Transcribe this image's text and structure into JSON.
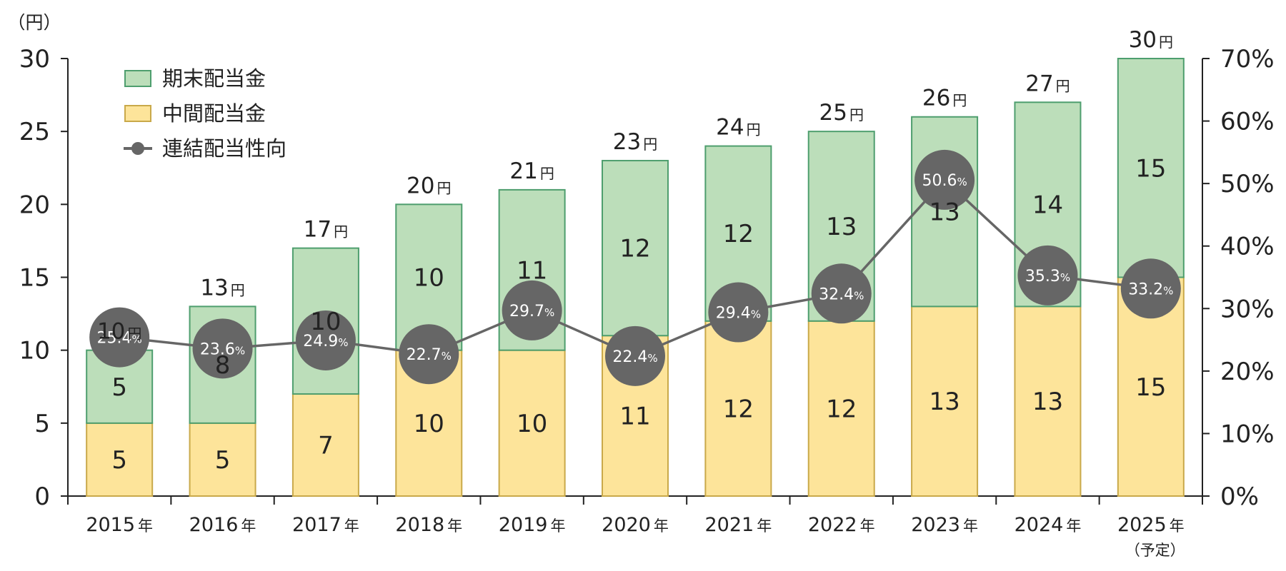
{
  "chart_data": {
    "type": "bar",
    "stacked": true,
    "categories": [
      "2015",
      "2016",
      "2017",
      "2018",
      "2019",
      "2020",
      "2021",
      "2022",
      "2023",
      "2024",
      "2025"
    ],
    "category_suffix": "年",
    "category_notes": [
      "",
      "",
      "",
      "",
      "",
      "",
      "",
      "",
      "",
      "",
      "（予定）"
    ],
    "series": [
      {
        "name": "中間配当金",
        "values": [
          5,
          5,
          7,
          10,
          10,
          11,
          12,
          12,
          13,
          13,
          15
        ],
        "color": "#fde49a",
        "stroke": "#c9a94a"
      },
      {
        "name": "期末配当金",
        "values": [
          5,
          8,
          10,
          10,
          11,
          12,
          12,
          13,
          13,
          14,
          15
        ],
        "color": "#bcdeba",
        "stroke": "#4e9e6e"
      }
    ],
    "totals": [
      10,
      13,
      17,
      20,
      21,
      23,
      24,
      25,
      26,
      27,
      30
    ],
    "total_unit": "円",
    "line_series": {
      "name": "連結配当性向",
      "axis": "right",
      "values": [
        25.4,
        23.6,
        24.9,
        22.7,
        29.7,
        22.4,
        29.4,
        32.4,
        50.6,
        35.3,
        33.2
      ],
      "value_suffix": "%",
      "color": "#666666"
    },
    "y_left": {
      "unit_label": "（円）",
      "min": 0,
      "max": 30,
      "ticks": [
        0,
        5,
        10,
        15,
        20,
        25,
        30
      ]
    },
    "y_right": {
      "min": 0,
      "max": 70,
      "ticks": [
        "0%",
        "10%",
        "20%",
        "30%",
        "40%",
        "50%",
        "60%",
        "70%"
      ]
    },
    "legend": {
      "position": "top-left",
      "items": [
        {
          "label": "期末配当金",
          "kind": "box",
          "color": "#bcdeba",
          "stroke": "#4e9e6e"
        },
        {
          "label": "中間配当金",
          "kind": "box",
          "color": "#fde49a",
          "stroke": "#c9a94a"
        },
        {
          "label": "連結配当性向",
          "kind": "line",
          "color": "#666666"
        }
      ]
    },
    "grid": false
  }
}
